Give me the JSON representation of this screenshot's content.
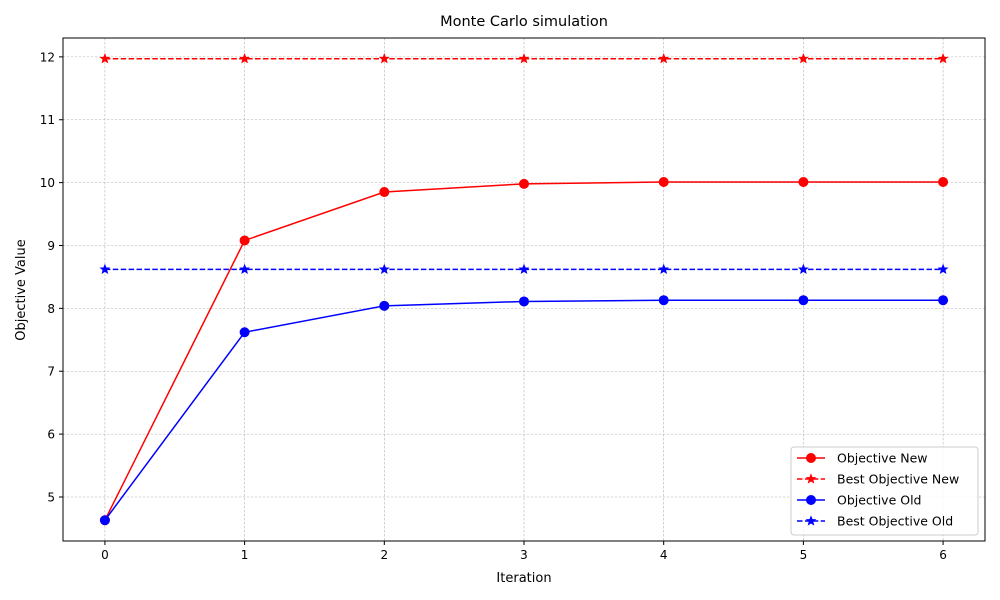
{
  "chart_data": {
    "type": "line",
    "title": "Monte Carlo simulation",
    "xlabel": "Iteration",
    "ylabel": "Objective Value",
    "x": [
      0,
      1,
      2,
      3,
      4,
      5,
      6
    ],
    "xlim": [
      -0.3,
      6.3
    ],
    "ylim": [
      4.3,
      12.3
    ],
    "xticks": [
      0,
      1,
      2,
      3,
      4,
      5,
      6
    ],
    "yticks": [
      5,
      6,
      7,
      8,
      9,
      10,
      11,
      12
    ],
    "grid": true,
    "legend_position": "lower-right",
    "series": [
      {
        "name": "Objective New",
        "color": "#ff0000",
        "linestyle": "solid",
        "marker": "circle",
        "values": [
          4.63,
          9.08,
          9.85,
          9.98,
          10.01,
          10.01,
          10.01
        ]
      },
      {
        "name": "Best Objective New",
        "color": "#ff0000",
        "linestyle": "dashed",
        "marker": "star",
        "values": [
          11.97,
          11.97,
          11.97,
          11.97,
          11.97,
          11.97,
          11.97
        ]
      },
      {
        "name": "Objective Old",
        "color": "#0000ff",
        "linestyle": "solid",
        "marker": "circle",
        "values": [
          4.63,
          7.62,
          8.04,
          8.11,
          8.13,
          8.13,
          8.13
        ]
      },
      {
        "name": "Best Objective Old",
        "color": "#0000ff",
        "linestyle": "dashed",
        "marker": "star",
        "values": [
          8.62,
          8.62,
          8.62,
          8.62,
          8.62,
          8.62,
          8.62
        ]
      }
    ]
  }
}
